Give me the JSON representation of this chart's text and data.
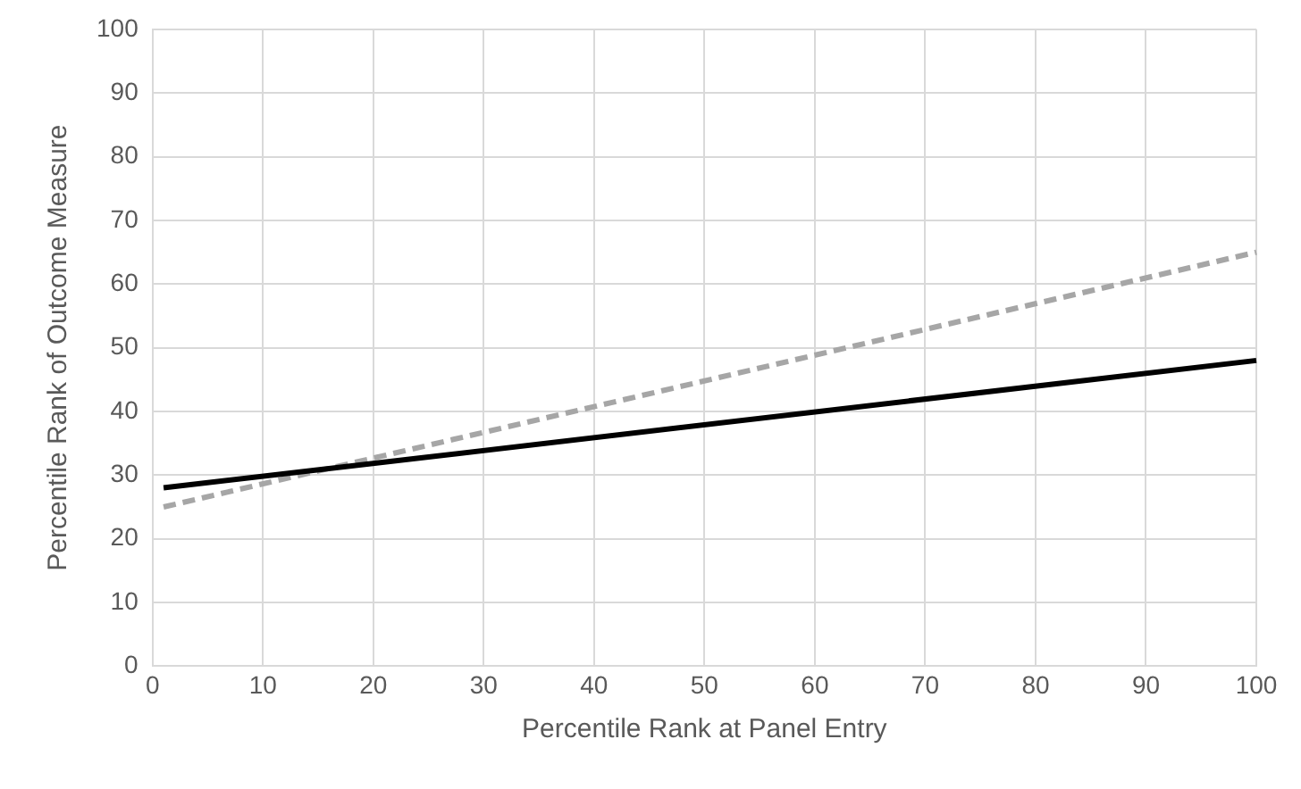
{
  "chart_data": {
    "type": "line",
    "xlabel": "Percentile Rank at Panel Entry",
    "ylabel": "Percentile Rank of Outcome Measure",
    "xlim": [
      0,
      100
    ],
    "xticks": [
      0,
      10,
      20,
      30,
      40,
      50,
      60,
      70,
      80,
      90,
      100
    ],
    "ylim": [
      0,
      100
    ],
    "yticks": [
      0,
      10,
      20,
      30,
      40,
      50,
      60,
      70,
      80,
      90,
      100
    ],
    "grid": true,
    "legend": false,
    "marker": "none",
    "x": [
      1,
      100
    ],
    "series": [
      {
        "color": "#000000",
        "line_style": "solid",
        "values": [
          28,
          48
        ]
      },
      {
        "color": "#a6a6a6",
        "line_style": "dashed",
        "values": [
          25,
          65
        ]
      }
    ]
  }
}
